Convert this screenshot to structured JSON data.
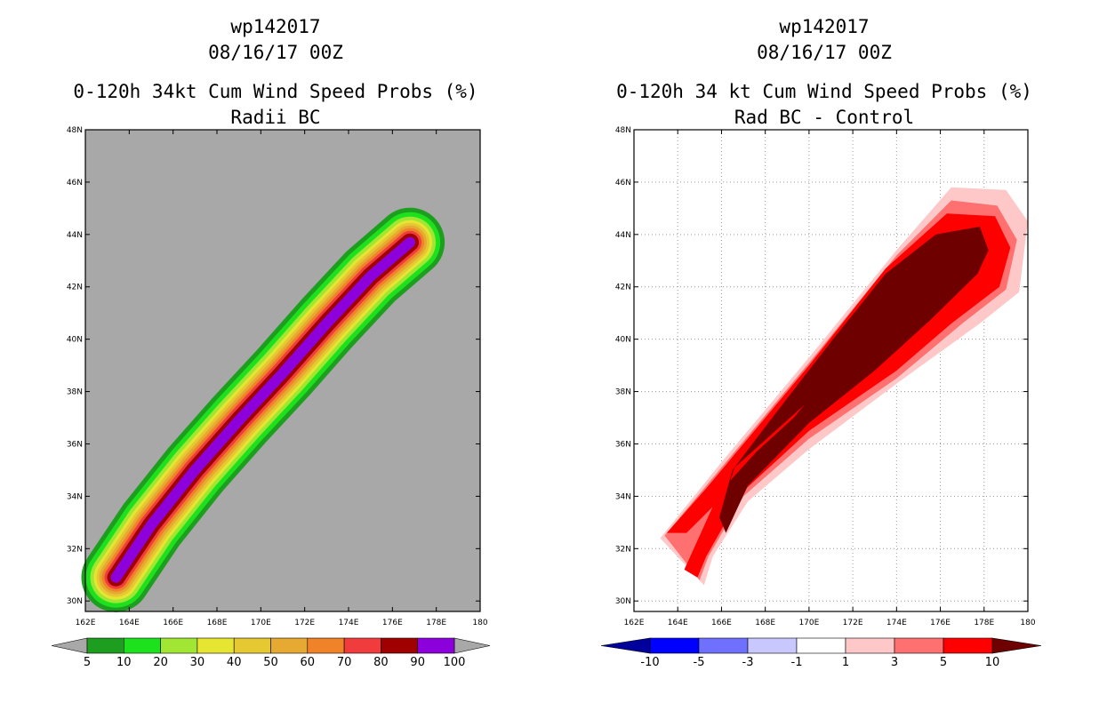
{
  "chart_data": [
    {
      "type": "heatmap",
      "storm_id": "wp142017",
      "datetime": "08/16/17 00Z",
      "title": "0-120h 34kt Cum Wind Speed Probs (%)",
      "subtitle": "Radii BC",
      "x_ticks": [
        "162E",
        "164E",
        "166E",
        "168E",
        "170E",
        "172E",
        "174E",
        "176E",
        "178E",
        "180"
      ],
      "y_ticks": [
        "30N",
        "32N",
        "34N",
        "36N",
        "38N",
        "40N",
        "42N",
        "44N",
        "46N",
        "48N"
      ],
      "xlim": [
        162,
        180
      ],
      "ylim": [
        29.6,
        48
      ],
      "grid": false,
      "colorbar": {
        "labels": [
          "5",
          "10",
          "20",
          "30",
          "40",
          "50",
          "60",
          "70",
          "80",
          "90",
          "100"
        ],
        "colors": [
          "#1e9e1e",
          "#1ee11e",
          "#a0e632",
          "#e6e632",
          "#e6c832",
          "#e6aa32",
          "#f08228",
          "#f03c3c",
          "#a00000",
          "#8c00dc"
        ]
      },
      "track": [
        {
          "lon": 163.4,
          "lat": 30.9
        },
        {
          "lon": 165.0,
          "lat": 32.9
        },
        {
          "lon": 167.0,
          "lat": 35.0
        },
        {
          "lon": 169.0,
          "lat": 36.9
        },
        {
          "lon": 171.0,
          "lat": 38.7
        },
        {
          "lon": 173.0,
          "lat": 40.6
        },
        {
          "lon": 175.0,
          "lat": 42.4
        },
        {
          "lon": 176.8,
          "lat": 43.7
        }
      ],
      "contour_levels": [
        5,
        10,
        20,
        30,
        40,
        50,
        60,
        70,
        80,
        90
      ]
    },
    {
      "type": "heatmap",
      "storm_id": "wp142017",
      "datetime": "08/16/17 00Z",
      "title": "0-120h 34 kt Cum Wind Speed Probs (%)",
      "subtitle": "Rad BC - Control",
      "x_ticks": [
        "162E",
        "164E",
        "166E",
        "168E",
        "170E",
        "172E",
        "174E",
        "176E",
        "178E",
        "180"
      ],
      "y_ticks": [
        "30N",
        "32N",
        "34N",
        "36N",
        "38N",
        "40N",
        "42N",
        "44N",
        "46N",
        "48N"
      ],
      "xlim": [
        162,
        180
      ],
      "ylim": [
        29.6,
        48
      ],
      "grid": true,
      "colorbar": {
        "labels": [
          "-10",
          "-5",
          "-3",
          "-1",
          "1",
          "3",
          "5",
          "10"
        ],
        "colors": [
          "#00009a",
          "#0000ff",
          "#7070ff",
          "#c8c8ff",
          "#ffffff",
          "#ffc8c8",
          "#ff7070",
          "#ff0000",
          "#6e0000"
        ]
      },
      "contour_levels": [
        1,
        3,
        5,
        10
      ]
    }
  ]
}
